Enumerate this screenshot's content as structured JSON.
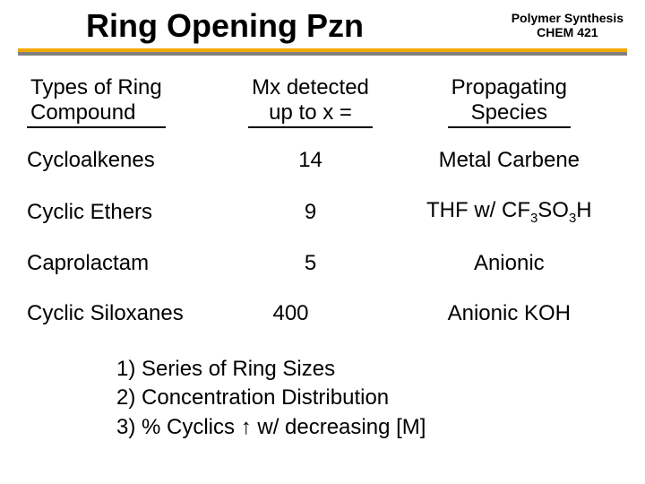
{
  "header": {
    "title": "Ring Opening Pzn",
    "course_line1": "Polymer Synthesis",
    "course_line2": "CHEM 421"
  },
  "table": {
    "col1_header_l1": "Types of Ring",
    "col1_header_l2": "Compound",
    "col2_header_l1": "Mx detected",
    "col2_header_l2": "up to x =",
    "col3_header_l1": "Propagating",
    "col3_header_l2": "Species",
    "rows": [
      {
        "compound": "Cycloalkenes",
        "mx": "14",
        "species": "Metal Carbene"
      },
      {
        "compound": "Cyclic Ethers",
        "mx": "9",
        "species_html": "THF w/ CF<span class=\"sub\">3</span>SO<span class=\"sub\">3</span>H"
      },
      {
        "compound": "Caprolactam",
        "mx": "5",
        "species": "Anionic"
      },
      {
        "compound": "Cyclic Siloxanes",
        "mx": "400",
        "species": "Anionic KOH"
      }
    ]
  },
  "notes": {
    "n1": "1) Series of Ring Sizes",
    "n2": "2) Concentration Distribution",
    "n3_pre": "3) % Cyclics ",
    "n3_arrow": "↑",
    "n3_post": " w/ decreasing [M]"
  },
  "colors": {
    "rule": "#f2a900",
    "rule_shadow": "#808080",
    "text": "#000000",
    "bg": "#ffffff"
  }
}
